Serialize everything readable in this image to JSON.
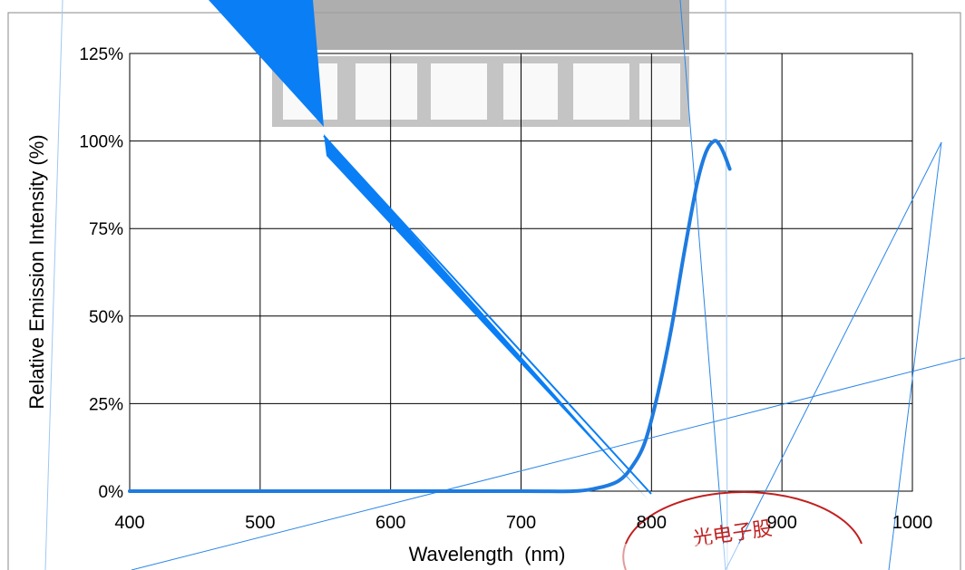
{
  "chart_data": {
    "type": "line",
    "title": "",
    "xlabel": "Wavelength  (nm)",
    "ylabel": "Relative Emission Intensity (%)",
    "xlim": [
      400,
      1000
    ],
    "ylim": [
      0,
      125
    ],
    "x_ticks": [
      400,
      500,
      600,
      700,
      800,
      900,
      1000
    ],
    "x_tick_labels": [
      "400",
      "500",
      "600",
      "700",
      "800",
      "900",
      "1000"
    ],
    "y_ticks": [
      0,
      25,
      50,
      75,
      100,
      125
    ],
    "y_tick_labels": [
      "0%",
      "25%",
      "50%",
      "75%",
      "100%",
      "125%"
    ],
    "grid": true,
    "legend": "none",
    "series": [
      {
        "color": "#1e7be0",
        "x": [
          400,
          600,
          700,
          740,
          760,
          775,
          785,
          795,
          805,
          815,
          825,
          835,
          842,
          848,
          852,
          856,
          860
        ],
        "y": [
          0,
          0,
          0,
          0,
          1,
          3,
          7,
          14,
          28,
          46,
          68,
          88,
          97,
          100,
          99,
          96,
          92
        ]
      }
    ],
    "overlays": {
      "triangle_color": "#0a7ef5",
      "line_color": "#2b86e6",
      "stamp_color": "#c0201f",
      "stamp_text": "光电子股"
    }
  }
}
